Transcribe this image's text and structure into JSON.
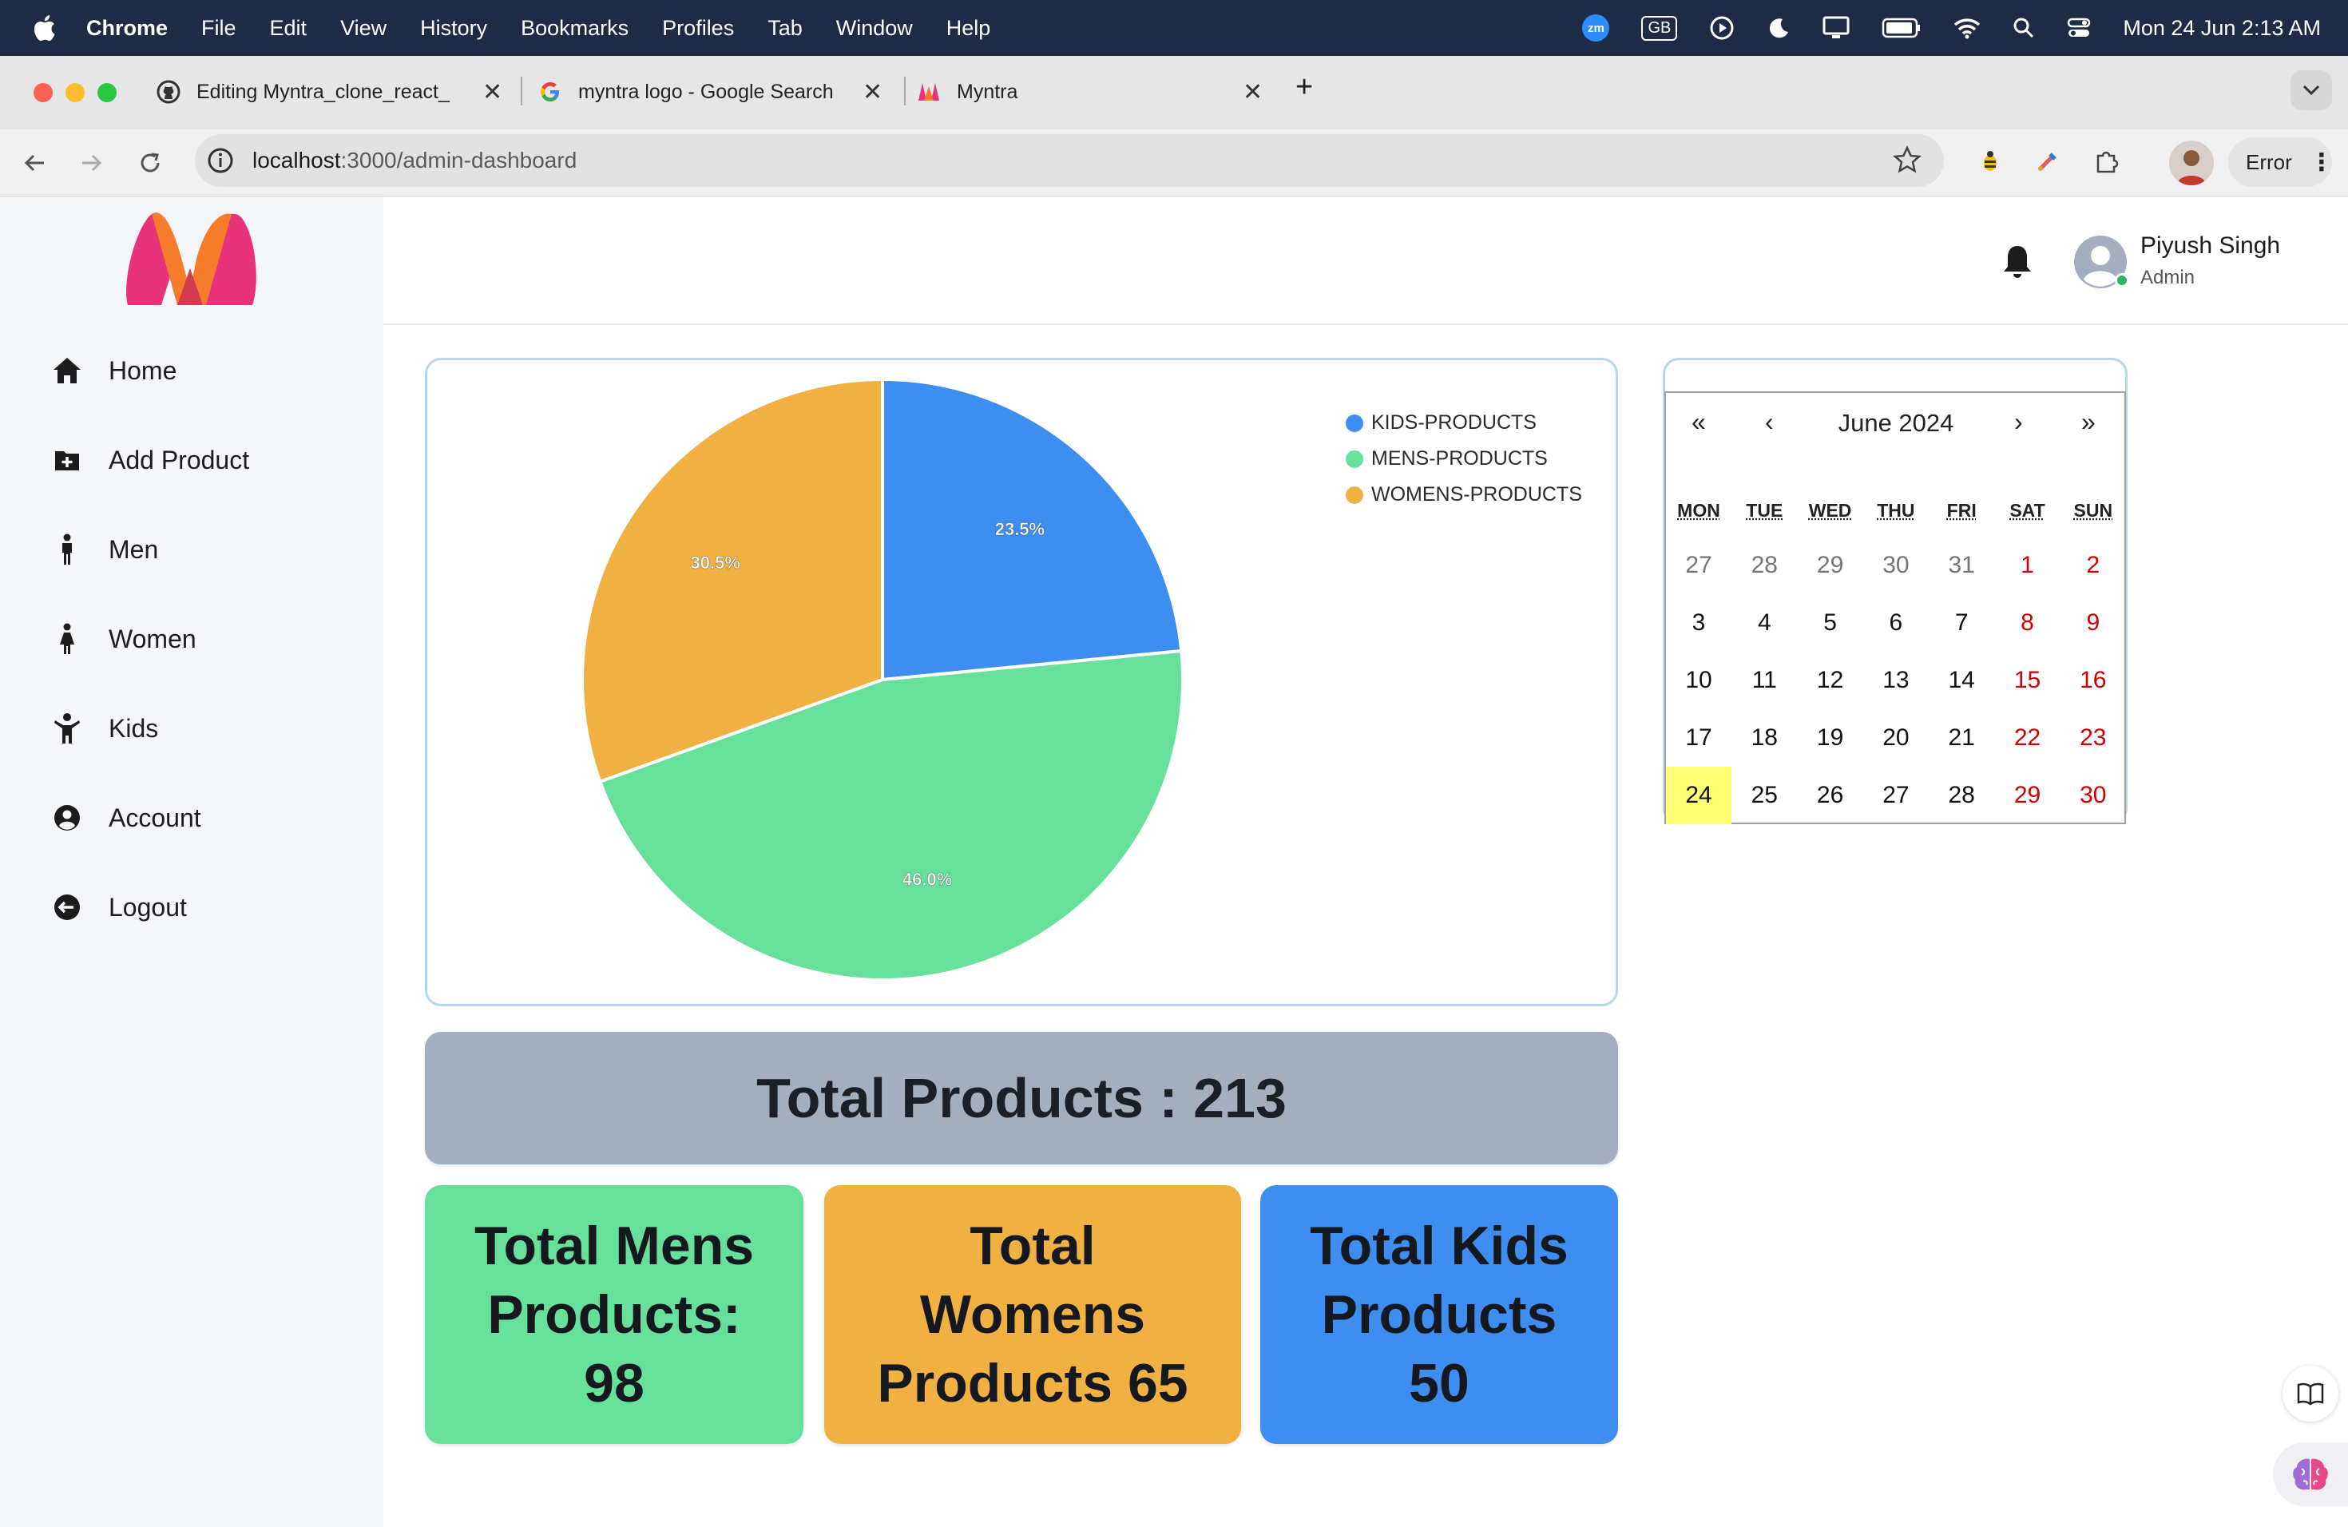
{
  "menubar": {
    "app": "Chrome",
    "items": [
      "File",
      "Edit",
      "View",
      "History",
      "Bookmarks",
      "Profiles",
      "Tab",
      "Window",
      "Help"
    ],
    "zm_label": "zm",
    "input_source": "GB",
    "datetime": "Mon 24 Jun  2:13 AM"
  },
  "tabs": [
    {
      "title": "Editing Myntra_clone_react_",
      "favicon": "github-icon"
    },
    {
      "title": "myntra logo - Google Search",
      "favicon": "google-icon"
    },
    {
      "title": "Myntra",
      "favicon": "myntra-icon"
    }
  ],
  "address_bar": {
    "host": "localhost",
    "path": ":3000/admin-dashboard"
  },
  "profile_button": {
    "label": "Error"
  },
  "sidebar": {
    "items": [
      {
        "label": "Home",
        "icon": "home-icon"
      },
      {
        "label": "Add Product",
        "icon": "folder-plus-icon"
      },
      {
        "label": "Men",
        "icon": "male-icon"
      },
      {
        "label": "Women",
        "icon": "female-icon"
      },
      {
        "label": "Kids",
        "icon": "child-icon"
      },
      {
        "label": "Account",
        "icon": "user-circle-icon"
      },
      {
        "label": "Logout",
        "icon": "logout-icon"
      }
    ]
  },
  "header": {
    "user_name": "Piyush Singh",
    "user_role": "Admin"
  },
  "chart_data": {
    "type": "pie",
    "title": "",
    "legend_placement": "top-right",
    "slices": [
      {
        "label": "KIDS-PRODUCTS",
        "value": 50,
        "percent_label": "23.5%",
        "color": "#3d8ef0"
      },
      {
        "label": "MENS-PRODUCTS",
        "value": 98,
        "percent_label": "46.0%",
        "color": "#66e09a"
      },
      {
        "label": "WOMENS-PRODUCTS",
        "value": 65,
        "percent_label": "30.5%",
        "color": "#f1b042"
      }
    ]
  },
  "totals": {
    "total_label": "Total Products : 213",
    "mens": {
      "line1": "Total Mens",
      "line2": "Products:",
      "line3": "98",
      "color": "#66e09a"
    },
    "womens": {
      "line1": "Total",
      "line2": "Womens",
      "line3": "Products 65",
      "color": "#f1b042"
    },
    "kids": {
      "line1": "Total Kids",
      "line2": "Products",
      "line3": "50",
      "color": "#3d8ef0"
    }
  },
  "calendar": {
    "title": "June 2024",
    "nav": {
      "prev_year": "«",
      "prev_month": "‹",
      "next_month": "›",
      "next_year": "»"
    },
    "weekdays": [
      "MON",
      "TUE",
      "WED",
      "THU",
      "FRI",
      "SAT",
      "SUN"
    ],
    "weeks": [
      [
        "27",
        "28",
        "29",
        "30",
        "31",
        "1",
        "2"
      ],
      [
        "3",
        "4",
        "5",
        "6",
        "7",
        "8",
        "9"
      ],
      [
        "10",
        "11",
        "12",
        "13",
        "14",
        "15",
        "16"
      ],
      [
        "17",
        "18",
        "19",
        "20",
        "21",
        "22",
        "23"
      ],
      [
        "24",
        "25",
        "26",
        "27",
        "28",
        "29",
        "30"
      ]
    ],
    "today": "24"
  }
}
